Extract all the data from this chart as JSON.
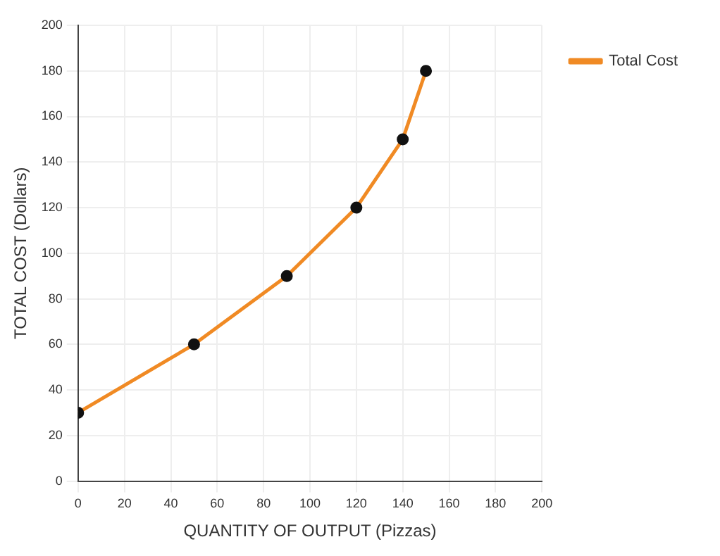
{
  "chart_data": {
    "type": "line",
    "xlabel": "QUANTITY OF OUTPUT (Pizzas)",
    "ylabel": "TOTAL COST (Dollars)",
    "x": [
      0,
      50,
      90,
      120,
      140,
      150
    ],
    "series": [
      {
        "name": "Total Cost",
        "color": "#f08a24",
        "values": [
          30,
          60,
          90,
          120,
          150,
          180
        ]
      }
    ],
    "xlim": [
      0,
      200
    ],
    "xticks": [
      0,
      20,
      40,
      60,
      80,
      100,
      120,
      140,
      160,
      180,
      200
    ],
    "ylim": [
      0,
      200
    ],
    "yticks": [
      0,
      20,
      40,
      60,
      80,
      100,
      120,
      140,
      160,
      180,
      200
    ],
    "grid": true,
    "legend": "top right",
    "marker": "circle",
    "line_style": "solid"
  }
}
